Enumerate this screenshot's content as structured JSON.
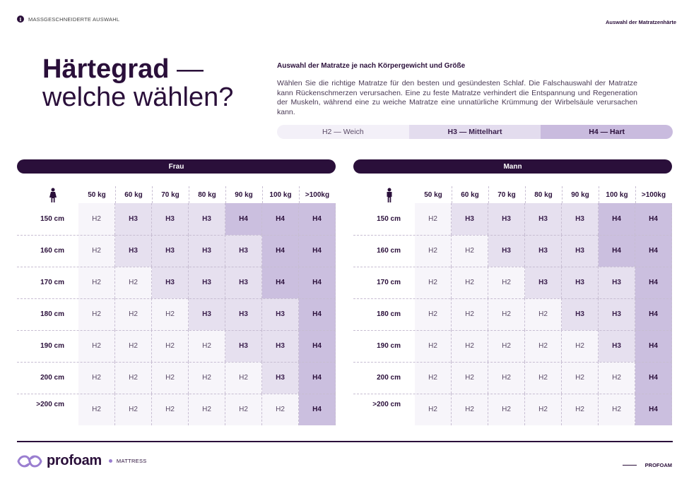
{
  "topbar": {
    "section": "MASSGESCHNEIDERTE AUSWAHL",
    "right": "Auswahl der Matratzenhärte",
    "info_icon": "info-icon"
  },
  "title": {
    "bold": "Härtegrad",
    "dash": " —",
    "line2": "welche wählen?"
  },
  "intro": {
    "heading": "Auswahl der Matratze je nach Körpergewicht und Größe",
    "text": "Wählen Sie die richtige Matratze für den besten und gesündesten Schlaf. Die Falschauswahl der Matratze kann Rückenschmerzen verursachen. Eine zu feste Matratze verhindert die Entspannung und Regeneration der Muskeln, während eine zu weiche Matratze eine unnatürliche Krümmung der Wirbelsäule verursachen kann."
  },
  "legend": {
    "h2": "H2 — Weich",
    "h3": "H3 — Mittelhart",
    "h4": "H4 — Hart"
  },
  "colors": {
    "primary": "#2a0f3a",
    "h2": "#f7f5fa",
    "h3": "#e6e0ef",
    "h4": "#cbbfdf",
    "accent": "#9a7ed0"
  },
  "weights": [
    "50 kg",
    "60 kg",
    "70 kg",
    "80 kg",
    "90 kg",
    "100 kg",
    ">100kg"
  ],
  "heights": [
    "150 cm",
    "160 cm",
    "170 cm",
    "180 cm",
    "190 cm",
    "200 cm",
    ">200 cm"
  ],
  "tables": [
    {
      "title": "Frau",
      "icon": "woman-icon",
      "rows": [
        [
          "H2",
          "H3",
          "H3",
          "H3",
          "H4",
          "H4",
          "H4"
        ],
        [
          "H2",
          "H3",
          "H3",
          "H3",
          "H3",
          "H4",
          "H4"
        ],
        [
          "H2",
          "H2",
          "H3",
          "H3",
          "H3",
          "H4",
          "H4"
        ],
        [
          "H2",
          "H2",
          "H2",
          "H3",
          "H3",
          "H3",
          "H4"
        ],
        [
          "H2",
          "H2",
          "H2",
          "H2",
          "H3",
          "H3",
          "H4"
        ],
        [
          "H2",
          "H2",
          "H2",
          "H2",
          "H2",
          "H3",
          "H4"
        ],
        [
          "H2",
          "H2",
          "H2",
          "H2",
          "H2",
          "H2",
          "H4"
        ]
      ]
    },
    {
      "title": "Mann",
      "icon": "man-icon",
      "rows": [
        [
          "H2",
          "H3",
          "H3",
          "H3",
          "H3",
          "H4",
          "H4"
        ],
        [
          "H2",
          "H2",
          "H3",
          "H3",
          "H3",
          "H4",
          "H4"
        ],
        [
          "H2",
          "H2",
          "H2",
          "H3",
          "H3",
          "H3",
          "H4"
        ],
        [
          "H2",
          "H2",
          "H2",
          "H2",
          "H3",
          "H3",
          "H4"
        ],
        [
          "H2",
          "H2",
          "H2",
          "H2",
          "H2",
          "H3",
          "H4"
        ],
        [
          "H2",
          "H2",
          "H2",
          "H2",
          "H2",
          "H2",
          "H4"
        ],
        [
          "H2",
          "H2",
          "H2",
          "H2",
          "H2",
          "H2",
          "H4"
        ]
      ]
    }
  ],
  "footer": {
    "brand": "profoam",
    "sub": "MATTRESS",
    "right": "PROFOAM",
    "logo_icon": "infinity-logo-icon"
  }
}
